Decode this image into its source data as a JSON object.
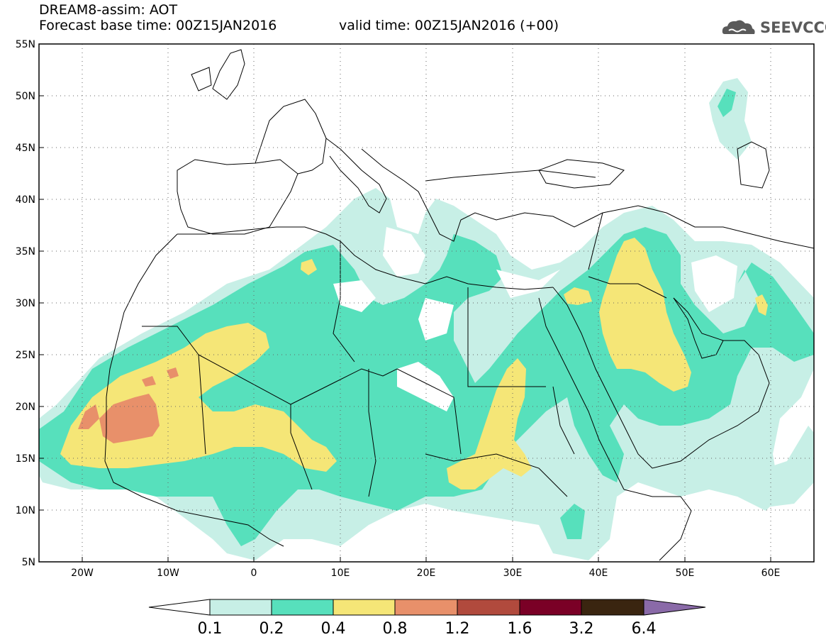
{
  "header": {
    "title": "DREAM8-assim: AOT",
    "base_time": "Forecast base time: 00Z15JAN2016",
    "valid_time": "valid time: 00Z15JAN2016 (+00)",
    "logo_text": "SEEVCCC"
  },
  "map": {
    "lon_range": [
      -25,
      65
    ],
    "lat_range": [
      5,
      55
    ],
    "lat_ticks": [
      "5N",
      "10N",
      "15N",
      "20N",
      "25N",
      "30N",
      "35N",
      "40N",
      "45N",
      "50N",
      "55N"
    ],
    "lon_ticks": [
      "20W",
      "10W",
      "0",
      "10E",
      "20E",
      "30E",
      "40E",
      "50E",
      "60E"
    ],
    "grid": "dotted"
  },
  "colorbar": {
    "labels": [
      "0.1",
      "0.2",
      "0.4",
      "0.8",
      "1.2",
      "1.6",
      "3.2",
      "6.4"
    ],
    "colors": [
      "#ffffff",
      "#c7efe6",
      "#57e0bc",
      "#f5e677",
      "#e8906a",
      "#b14a3d",
      "#7a0026",
      "#3a2510",
      "#8a6aa8"
    ]
  },
  "legend_colors": {
    "c01": "#c7efe6",
    "c02": "#57e0bc",
    "c04": "#f5e677",
    "c08": "#e8906a"
  }
}
